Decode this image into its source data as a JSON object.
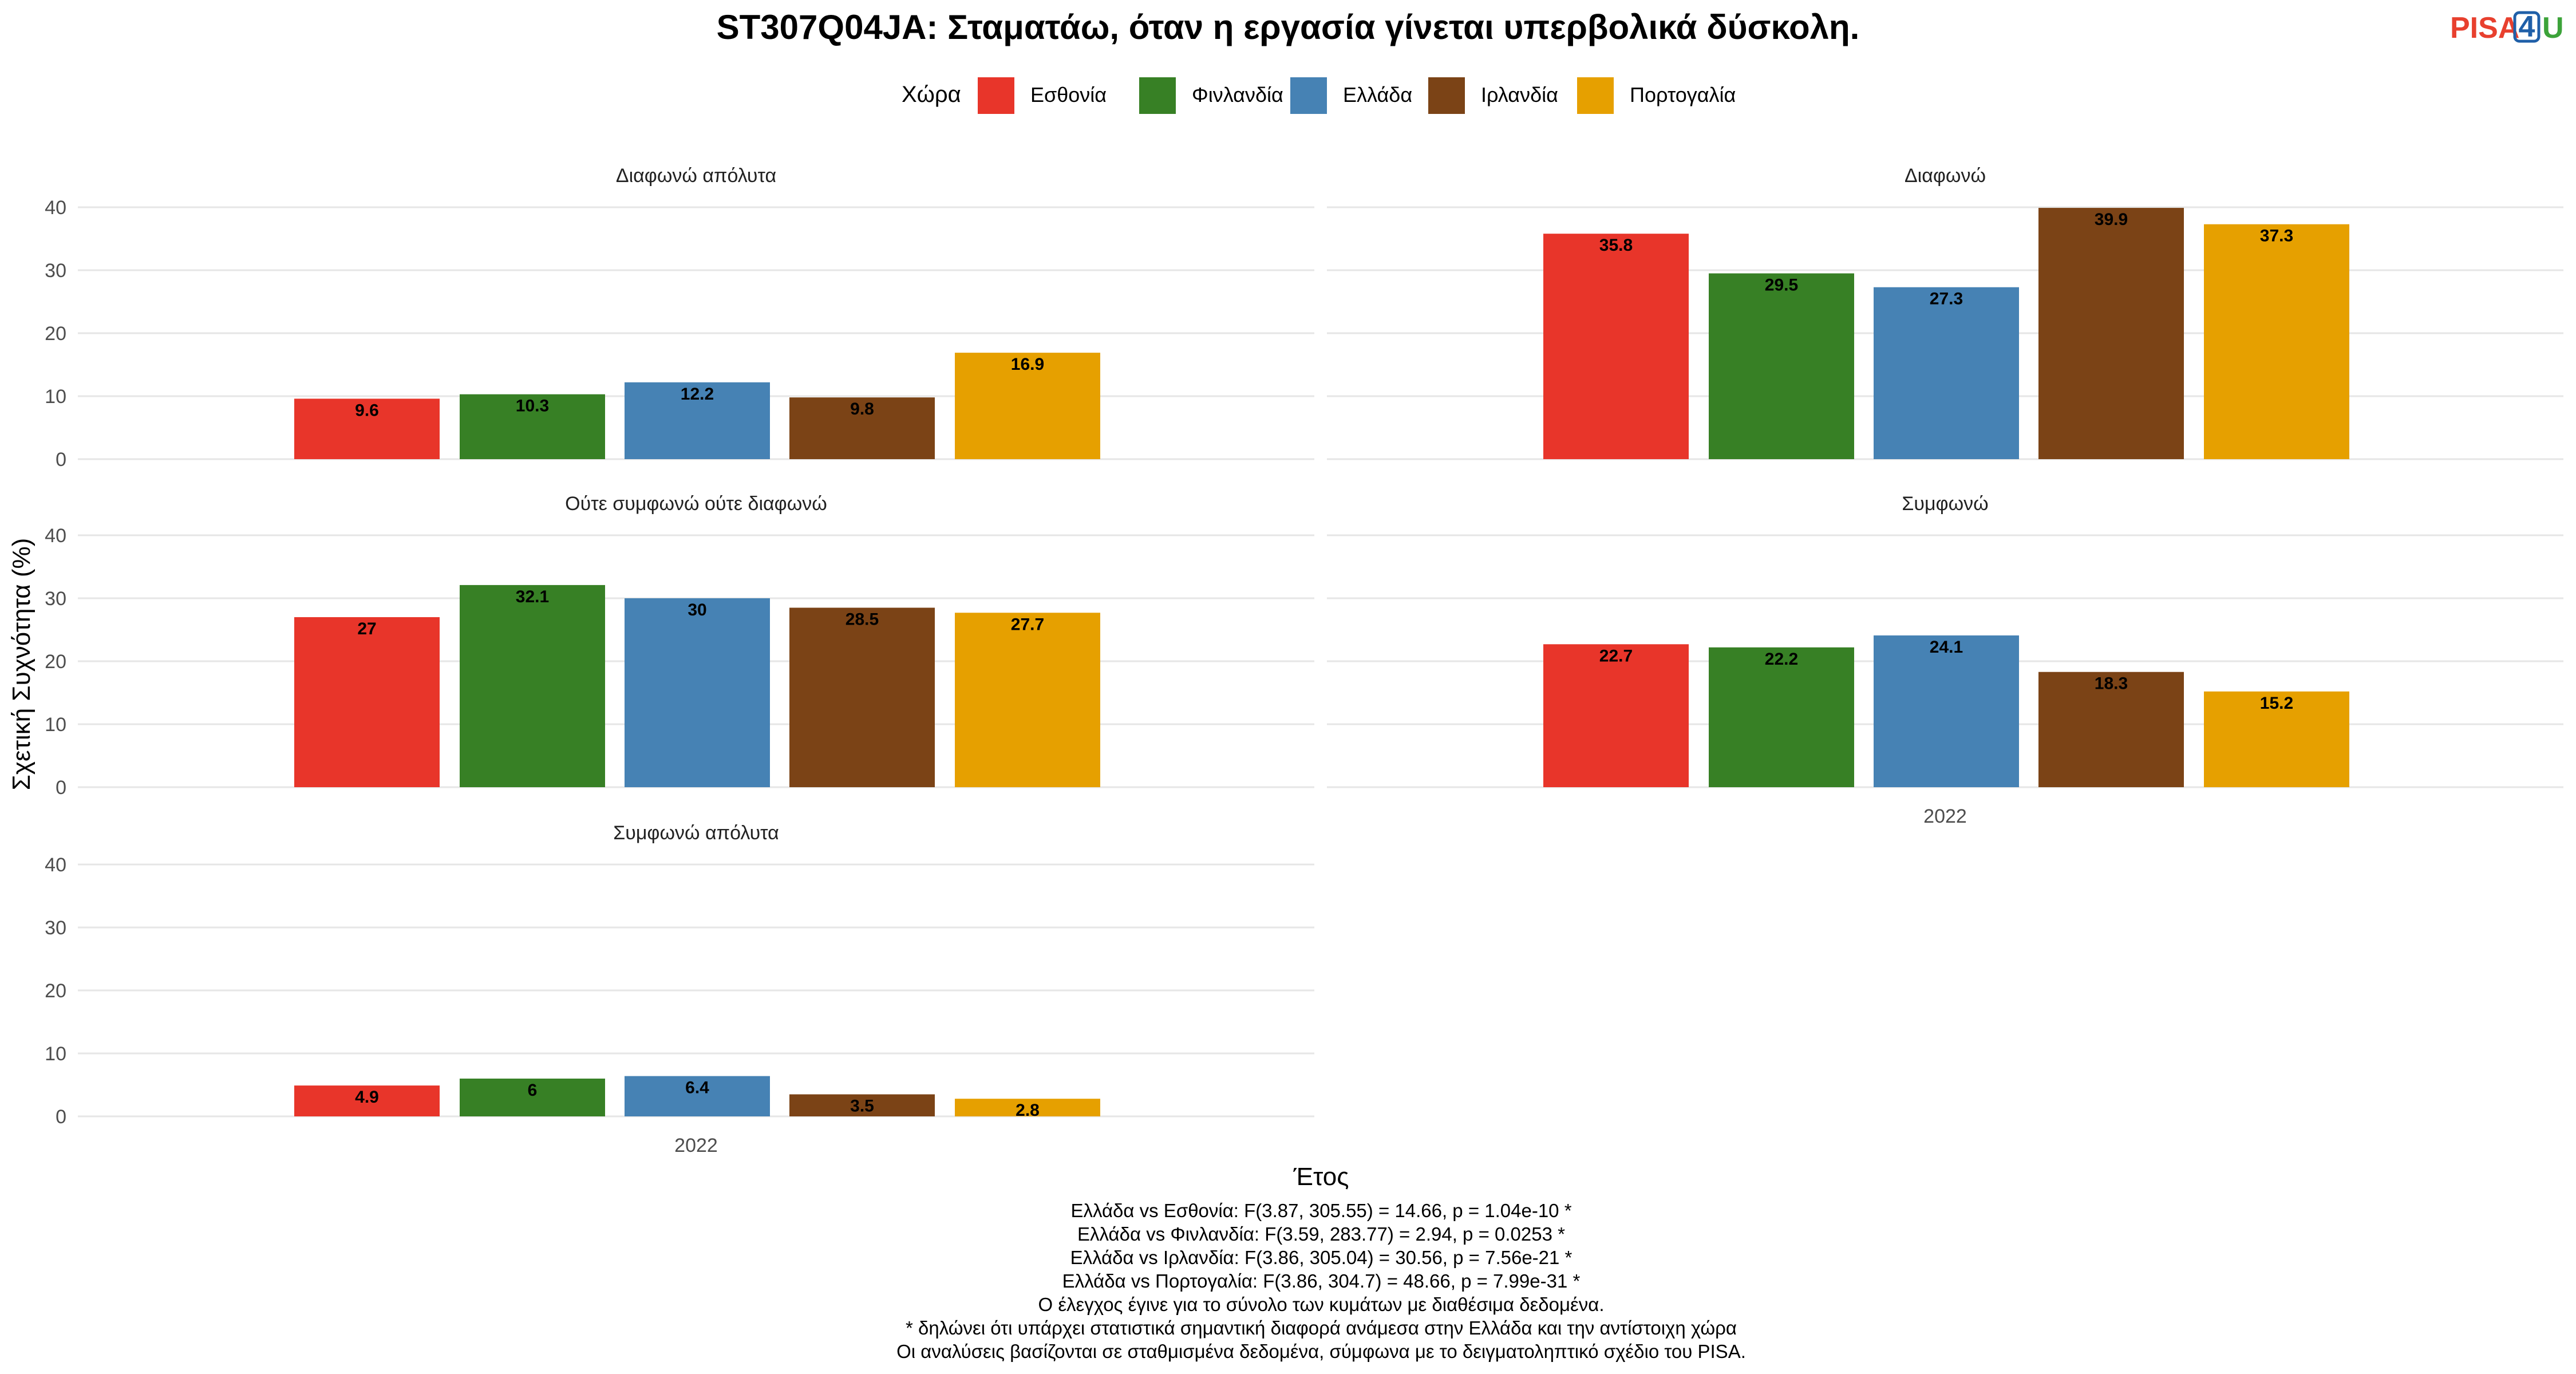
{
  "logo": {
    "part1": "PISA",
    "part2": "4",
    "part3": "U",
    "color1": "#E8402E",
    "color2": "#1F5FA8",
    "color3": "#3CA33A"
  },
  "chart_data": {
    "type": "bar",
    "title": "ST307Q04JA: Σταματάω, όταν η εργασία γίνεται υπερβολικά δύσκολη.",
    "legend_title": "Χώρα",
    "legend_position": "top",
    "ylabel": "Σχετική Συχνότητα (%)",
    "xlabel": "Έτος",
    "ylim": [
      0,
      40
    ],
    "yticks": [
      0,
      10,
      20,
      30,
      40
    ],
    "grid": true,
    "x_category": "2022",
    "countries": [
      {
        "name": "Εσθονία",
        "color": "#E8352A"
      },
      {
        "name": "Φινλανδία",
        "color": "#378025"
      },
      {
        "name": "Ελλάδα",
        "color": "#4682B4"
      },
      {
        "name": "Ιρλανδία",
        "color": "#7B4316"
      },
      {
        "name": "Πορτογαλία",
        "color": "#E6A000"
      }
    ],
    "panels": [
      {
        "label": "Διαφωνώ απόλυτα",
        "values": [
          9.6,
          10.3,
          12.2,
          9.8,
          16.9
        ],
        "labels": [
          "9.6",
          "10.3",
          "12.2",
          "9.8",
          "16.9"
        ]
      },
      {
        "label": "Διαφωνώ",
        "values": [
          35.8,
          29.5,
          27.3,
          39.9,
          37.3
        ],
        "labels": [
          "35.8",
          "29.5",
          "27.3",
          "39.9",
          "37.3"
        ]
      },
      {
        "label": "Ούτε συμφωνώ ούτε διαφωνώ",
        "values": [
          27,
          32.1,
          30,
          28.5,
          27.7
        ],
        "labels": [
          "27",
          "32.1",
          "30",
          "28.5",
          "27.7"
        ]
      },
      {
        "label": "Συμφωνώ",
        "values": [
          22.7,
          22.2,
          24.1,
          18.3,
          15.2
        ],
        "labels": [
          "22.7",
          "22.2",
          "24.1",
          "18.3",
          "15.2"
        ]
      },
      {
        "label": "Συμφωνώ απόλυτα",
        "values": [
          4.9,
          6,
          6.4,
          3.5,
          2.8
        ],
        "labels": [
          "4.9",
          "6",
          "6.4",
          "3.5",
          "2.8"
        ]
      }
    ]
  },
  "caption_lines": [
    "Ελλάδα vs Εσθονία: F(3.87, 305.55) = 14.66, p = 1.04e-10 *",
    "Ελλάδα vs Φινλανδία: F(3.59, 283.77) = 2.94, p = 0.0253 *",
    "Ελλάδα vs Ιρλανδία: F(3.86, 305.04) = 30.56, p = 7.56e-21 *",
    "Ελλάδα vs Πορτογαλία: F(3.86, 304.7) = 48.66, p = 7.99e-31 *",
    "Ο έλεγχος έγινε για το σύνολο των κυμάτων με διαθέσιμα δεδομένα.",
    "* δηλώνει ότι υπάρχει στατιστικά σημαντική διαφορά ανάμεσα στην Ελλάδα και την αντίστοιχη χώρα",
    "Οι αναλύσεις βασίζονται σε σταθμισμένα δεδομένα, σύμφωνα με το δειγματοληπτικό σχέδιο του PISA."
  ]
}
